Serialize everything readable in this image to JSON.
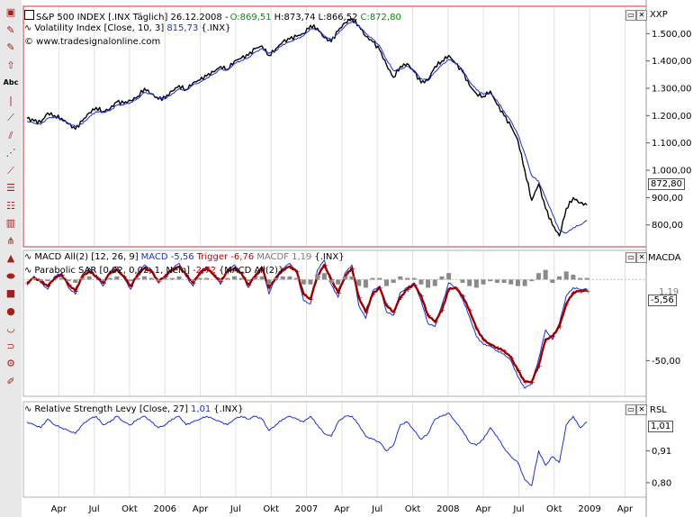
{
  "toolbar": {
    "tools": [
      {
        "name": "pointer-tool-icon",
        "glyph": "▣"
      },
      {
        "name": "pencil-tool-icon",
        "glyph": "✎"
      },
      {
        "name": "pencil-alt-tool-icon",
        "glyph": "✎"
      },
      {
        "name": "arrow-tool-icon",
        "glyph": "⇧"
      },
      {
        "name": "text-tool-icon",
        "glyph": "Abc"
      },
      {
        "name": "vertical-line-tool-icon",
        "glyph": "|"
      },
      {
        "name": "line-tool-icon",
        "glyph": "⟋"
      },
      {
        "name": "channel-tool-icon",
        "glyph": "⫽"
      },
      {
        "name": "gann-tool-icon",
        "glyph": "⋰"
      },
      {
        "name": "trendline-tool-icon",
        "glyph": "⟋"
      },
      {
        "name": "fibonacci-tool-icon",
        "glyph": "☰"
      },
      {
        "name": "fib-fan-tool-icon",
        "glyph": "☷"
      },
      {
        "name": "bars-tool-icon",
        "glyph": "▥"
      },
      {
        "name": "pitchfork-tool-icon",
        "glyph": "⋔"
      },
      {
        "name": "triangle-tool-icon",
        "glyph": "▲"
      },
      {
        "name": "ellipse-tool-icon",
        "glyph": "⬬"
      },
      {
        "name": "rectangle-tool-icon",
        "glyph": "■"
      },
      {
        "name": "circle-tool-icon",
        "glyph": "●"
      },
      {
        "name": "arc-tool-icon",
        "glyph": "◡"
      },
      {
        "name": "magnet-tool-icon",
        "glyph": "⊃"
      },
      {
        "name": "settings-tool-icon",
        "glyph": "⚙"
      },
      {
        "name": "eraser-tool-icon",
        "glyph": "✐"
      }
    ]
  },
  "panels": {
    "price": {
      "title_name": "S&P 500 INDEX [.INX Täglich] 26.12.2008 -",
      "ohlc": {
        "o": "O:869,51",
        "h": "H:873,74",
        "l": "L:866,52",
        "c": "C:872,80"
      },
      "indicator_name": "Volatility Index [Close, 10, 3]",
      "indicator_value": "815,73",
      "indicator_symbol": "{.INX}",
      "watermark": "© www.tradesignalonline.com",
      "axis_name": "XXP",
      "last_value": "872,80"
    },
    "macd": {
      "title_name": "MACD All(2) [12, 26, 9]",
      "macd_label": "MACD -5,56",
      "trigger_label": "Trigger -6,76",
      "macdf_label": "MACDF 1,19",
      "symbol": "{.INX}",
      "sar_name": "Parabolic SAR [0,02, 0,02, 1, Nein]",
      "sar_value": "-2,72",
      "sar_source": "{MACD All(2)}",
      "axis_name": "MACDA",
      "last_value": "-5,56",
      "partial_label": "1,19"
    },
    "rsl": {
      "title_name": "Relative Strength Levy [Close, 27]",
      "value": "1,01",
      "symbol": "{.INX}",
      "axis_name": "RSL",
      "last_value": "1,01"
    }
  },
  "colors": {
    "price": "#000000",
    "indicator": "#1e2fd0",
    "sar": "#9a0000",
    "histogram": "#8a8a8a",
    "border_active": "#d03030",
    "grid": "#e0e0e0"
  },
  "chart_data": [
    {
      "type": "line",
      "title": "S&P 500 INDEX [.INX Täglich] 26.12.2008",
      "ylim": [
        720,
        1600
      ],
      "ticks": [
        "1.500,00",
        "1.400,00",
        "1.300,00",
        "1.200,00",
        "1.100,00",
        "1.000,00",
        "900,00",
        "800,00"
      ],
      "tick_values": [
        1500,
        1400,
        1300,
        1200,
        1100,
        1000,
        900,
        800
      ],
      "x_labels": [
        "Apr",
        "Jul",
        "Okt",
        "2006",
        "Apr",
        "Jul",
        "Okt",
        "2007",
        "Apr",
        "Jul",
        "Okt",
        "2008",
        "Apr",
        "Jul",
        "Okt",
        "2009",
        "Apr"
      ],
      "series": [
        {
          "name": "S&P 500",
          "values": [
            1190,
            1180,
            1175,
            1210,
            1200,
            1190,
            1170,
            1150,
            1180,
            1210,
            1230,
            1215,
            1225,
            1250,
            1245,
            1255,
            1270,
            1300,
            1280,
            1260,
            1265,
            1290,
            1310,
            1295,
            1320,
            1330,
            1345,
            1360,
            1380,
            1370,
            1400,
            1410,
            1420,
            1445,
            1455,
            1420,
            1445,
            1470,
            1480,
            1490,
            1500,
            1530,
            1520,
            1485,
            1470,
            1510,
            1540,
            1555,
            1530,
            1490,
            1470,
            1440,
            1385,
            1340,
            1380,
            1390,
            1360,
            1320,
            1330,
            1380,
            1400,
            1420,
            1390,
            1360,
            1310,
            1280,
            1270,
            1290,
            1240,
            1200,
            1160,
            1110,
            1000,
            890,
            950,
            860,
            800,
            760,
            860,
            900,
            880,
            873
          ]
        },
        {
          "name": "Volatility Index",
          "values": [
            1180,
            1172,
            1168,
            1190,
            1195,
            1185,
            1172,
            1160,
            1170,
            1195,
            1215,
            1212,
            1218,
            1238,
            1240,
            1248,
            1262,
            1285,
            1278,
            1265,
            1262,
            1280,
            1298,
            1292,
            1312,
            1322,
            1338,
            1352,
            1370,
            1366,
            1390,
            1402,
            1412,
            1432,
            1445,
            1428,
            1438,
            1460,
            1470,
            1480,
            1492,
            1518,
            1515,
            1492,
            1478,
            1500,
            1528,
            1545,
            1530,
            1500,
            1480,
            1455,
            1405,
            1365,
            1370,
            1380,
            1365,
            1335,
            1328,
            1360,
            1385,
            1405,
            1392,
            1368,
            1325,
            1295,
            1278,
            1282,
            1255,
            1215,
            1180,
            1130,
            1060,
            980,
            960,
            900,
            840,
            780,
            770,
            790,
            800,
            816
          ]
        }
      ]
    },
    {
      "type": "line",
      "title": "MACD All(2) [12, 26, 9]",
      "ylim": [
        -72,
        18
      ],
      "ticks": [
        "-50,00"
      ],
      "tick_values": [
        -50
      ],
      "series": [
        {
          "name": "MACD",
          "values": [
            -3,
            2,
            -2,
            -6,
            2,
            4,
            -5,
            -9,
            3,
            7,
            2,
            -4,
            5,
            8,
            1,
            -6,
            4,
            9,
            6,
            -2,
            3,
            7,
            10,
            2,
            -4,
            5,
            8,
            3,
            -3,
            6,
            9,
            4,
            -5,
            3,
            8,
            -9,
            2,
            7,
            10,
            5,
            -13,
            -15,
            6,
            12,
            -3,
            -11,
            4,
            9,
            -16,
            -24,
            -7,
            -4,
            -20,
            -22,
            -8,
            -5,
            -2,
            -13,
            -27,
            -29,
            -16,
            -2,
            -5,
            -12,
            -23,
            -35,
            -40,
            -41,
            -44,
            -46,
            -50,
            -60,
            -67,
            -64,
            -49,
            -31,
            -37,
            -27,
            -10,
            -5,
            -6,
            -6
          ]
        },
        {
          "name": "Trigger",
          "values": [
            -2,
            1,
            -1,
            -4,
            1,
            3,
            -3,
            -7,
            2,
            5,
            2,
            -2,
            4,
            6,
            2,
            -4,
            3,
            7,
            5,
            -1,
            2,
            6,
            8,
            3,
            -2,
            4,
            7,
            3,
            -1,
            5,
            7,
            4,
            -3,
            2,
            7,
            -5,
            1,
            6,
            8,
            5,
            -9,
            -12,
            2,
            9,
            0,
            -8,
            2,
            7,
            -11,
            -20,
            -9,
            -5,
            -16,
            -20,
            -11,
            -6,
            -3,
            -10,
            -22,
            -26,
            -19,
            -6,
            -5,
            -10,
            -19,
            -30,
            -37,
            -40,
            -42,
            -44,
            -48,
            -56,
            -63,
            -63,
            -53,
            -37,
            -35,
            -29,
            -15,
            -8,
            -7,
            -7
          ]
        },
        {
          "name": "MACDF",
          "values": [
            0,
            1,
            -1,
            -1,
            0,
            1,
            -1,
            -2,
            1,
            2,
            0,
            -1,
            1,
            2,
            0,
            -1,
            1,
            2,
            1,
            -1,
            1,
            1,
            2,
            0,
            -1,
            1,
            1,
            0,
            -1,
            1,
            2,
            1,
            -1,
            1,
            2,
            -3,
            1,
            2,
            2,
            1,
            -3,
            -3,
            3,
            4,
            -2,
            -3,
            2,
            2,
            -4,
            -5,
            1,
            1,
            -4,
            -2,
            2,
            1,
            1,
            -3,
            -5,
            -4,
            2,
            4,
            0,
            -2,
            -4,
            -5,
            -3,
            -1,
            -2,
            -2,
            -3,
            -4,
            -4,
            -1,
            4,
            6,
            -2,
            2,
            5,
            3,
            1,
            1
          ]
        }
      ]
    },
    {
      "type": "line",
      "title": "Relative Strength Levy [Close, 27]",
      "ylim": [
        0.75,
        1.08
      ],
      "ticks": [
        "0,91",
        "0,80"
      ],
      "tick_values": [
        0.91,
        0.8
      ],
      "series": [
        {
          "name": "Relative Strength Levy",
          "values": [
            1.01,
            1.0,
            0.99,
            1.02,
            1.0,
            0.99,
            0.98,
            0.97,
            1.0,
            1.02,
            1.03,
            1.0,
            1.01,
            1.03,
            1.01,
            1.0,
            1.02,
            1.03,
            1.01,
            0.99,
            1.0,
            1.02,
            1.03,
            1.0,
            1.01,
            1.02,
            1.03,
            1.02,
            1.01,
            1.0,
            1.02,
            1.03,
            1.02,
            1.03,
            1.02,
            0.98,
            1.0,
            1.02,
            1.03,
            1.02,
            1.01,
            1.03,
            1.0,
            0.97,
            0.96,
            1.01,
            1.03,
            1.03,
            1.0,
            0.96,
            0.95,
            0.94,
            0.91,
            0.93,
            1.0,
            1.01,
            0.98,
            0.95,
            0.97,
            1.02,
            1.03,
            1.04,
            1.01,
            0.98,
            0.94,
            0.93,
            0.95,
            0.99,
            0.96,
            0.92,
            0.89,
            0.87,
            0.81,
            0.79,
            0.91,
            0.86,
            0.89,
            0.87,
            1.0,
            1.03,
            0.99,
            1.01
          ]
        }
      ]
    }
  ]
}
